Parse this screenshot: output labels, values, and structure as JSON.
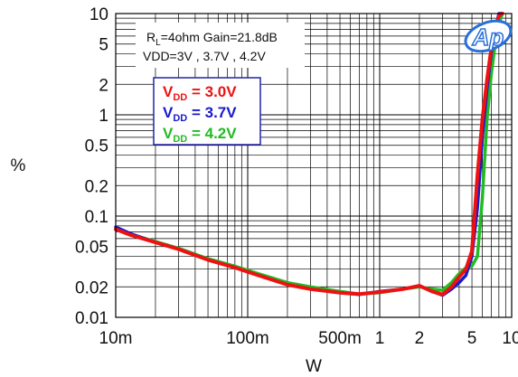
{
  "chart_data": {
    "type": "line",
    "title": "",
    "xlabel": "W",
    "ylabel": "%",
    "x_scale": "log",
    "y_scale": "log",
    "xlim": [
      0.01,
      10
    ],
    "ylim": [
      0.01,
      10
    ],
    "grid": true,
    "x_ticks": [
      {
        "value": 0.01,
        "label": "10m"
      },
      {
        "value": 0.1,
        "label": "100m"
      },
      {
        "value": 0.5,
        "label": "500m"
      },
      {
        "value": 1,
        "label": "1"
      },
      {
        "value": 2,
        "label": "2"
      },
      {
        "value": 5,
        "label": "5"
      },
      {
        "value": 10,
        "label": "10"
      }
    ],
    "y_ticks": [
      {
        "value": 0.01,
        "label": "0.01"
      },
      {
        "value": 0.02,
        "label": "0.02"
      },
      {
        "value": 0.05,
        "label": "0.05"
      },
      {
        "value": 0.1,
        "label": "0.1"
      },
      {
        "value": 0.2,
        "label": "0.2"
      },
      {
        "value": 0.5,
        "label": "0.5"
      },
      {
        "value": 1,
        "label": "1"
      },
      {
        "value": 2,
        "label": "2"
      },
      {
        "value": 5,
        "label": "5"
      },
      {
        "value": 10,
        "label": "10"
      }
    ],
    "annotation": {
      "line1": {
        "main": "R",
        "sub": "L",
        "rest": "=4ohm Gain=21.8dB"
      },
      "line2": "VDD=3V , 3.7V , 4.2V"
    },
    "legend": {
      "position": "top-left",
      "entries": [
        {
          "main": "V",
          "sub": "DD",
          "rest": " = 3.0V",
          "color": "#ee1111"
        },
        {
          "main": "V",
          "sub": "DD",
          "rest": " = 3.7V",
          "color": "#1a1acc"
        },
        {
          "main": "V",
          "sub": "DD",
          "rest": " = 4.2V",
          "color": "#22bb22"
        }
      ]
    },
    "logo": {
      "text": "Ap",
      "color": "#2a6fd8"
    },
    "series": [
      {
        "name": "VDD = 4.2V",
        "color": "#22bb22",
        "x": [
          0.01,
          0.013,
          0.02,
          0.03,
          0.05,
          0.08,
          0.12,
          0.2,
          0.3,
          0.5,
          0.7,
          1.0,
          1.5,
          2.0,
          2.5,
          3.0,
          3.5,
          4.0,
          4.5,
          5.0,
          5.5,
          6.0,
          6.5,
          7.0,
          7.5,
          8.0,
          8.5
        ],
        "y": [
          0.075,
          0.066,
          0.056,
          0.048,
          0.038,
          0.032,
          0.027,
          0.022,
          0.02,
          0.018,
          0.017,
          0.0175,
          0.019,
          0.02,
          0.019,
          0.0185,
          0.022,
          0.027,
          0.031,
          0.032,
          0.04,
          0.15,
          0.9,
          2.5,
          5.0,
          8.0,
          11.0
        ]
      },
      {
        "name": "VDD = 3.7V",
        "color": "#1a1acc",
        "x": [
          0.01,
          0.013,
          0.02,
          0.03,
          0.05,
          0.08,
          0.12,
          0.2,
          0.3,
          0.5,
          0.7,
          1.0,
          1.5,
          2.0,
          2.5,
          3.0,
          3.5,
          4.0,
          4.5,
          5.0,
          5.5,
          6.0,
          6.5,
          7.0,
          7.5,
          8.0,
          8.5
        ],
        "y": [
          0.078,
          0.067,
          0.055,
          0.047,
          0.037,
          0.031,
          0.026,
          0.021,
          0.019,
          0.0175,
          0.0168,
          0.018,
          0.019,
          0.0205,
          0.018,
          0.0165,
          0.019,
          0.022,
          0.026,
          0.04,
          0.12,
          0.6,
          1.8,
          4.0,
          7.0,
          10.0,
          11.0
        ]
      },
      {
        "name": "VDD = 3.0V",
        "color": "#ee1111",
        "x": [
          0.01,
          0.013,
          0.02,
          0.03,
          0.05,
          0.08,
          0.12,
          0.2,
          0.3,
          0.5,
          0.7,
          1.0,
          1.5,
          2.0,
          2.5,
          3.0,
          3.5,
          4.0,
          4.5,
          5.0,
          5.5,
          6.0,
          6.5,
          7.0,
          7.5,
          8.0,
          8.5
        ],
        "y": [
          0.074,
          0.065,
          0.055,
          0.047,
          0.037,
          0.031,
          0.026,
          0.021,
          0.019,
          0.0175,
          0.017,
          0.0178,
          0.019,
          0.0205,
          0.018,
          0.0168,
          0.02,
          0.025,
          0.03,
          0.045,
          0.25,
          0.9,
          2.2,
          4.5,
          7.0,
          9.5,
          11.0
        ]
      }
    ]
  }
}
